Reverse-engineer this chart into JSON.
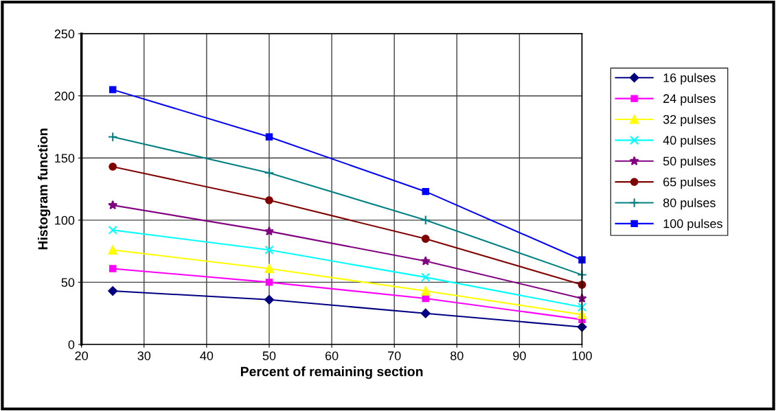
{
  "chart_data": {
    "type": "line",
    "xlabel": "Percent of remaining section",
    "ylabel": "Histogram function",
    "x": [
      25,
      50,
      75,
      100
    ],
    "xlim": [
      20,
      100
    ],
    "xticks": [
      20,
      30,
      40,
      50,
      60,
      70,
      80,
      90,
      100
    ],
    "ylim": [
      0,
      250
    ],
    "yticks": [
      0,
      50,
      100,
      150,
      200,
      250
    ],
    "grid": true,
    "legend": "right",
    "line_style": "solid",
    "series": [
      {
        "name": "16 pulses",
        "color": "#000080",
        "marker": "diamond",
        "values": [
          43,
          36,
          25,
          14
        ]
      },
      {
        "name": "24 pulses",
        "color": "#ff00ff",
        "marker": "square",
        "values": [
          61,
          50,
          37,
          20
        ]
      },
      {
        "name": "32 pulses",
        "color": "#ffff00",
        "marker": "triangle",
        "values": [
          76,
          61,
          43,
          24
        ]
      },
      {
        "name": "40 pulses",
        "color": "#00ffff",
        "marker": "cross",
        "values": [
          92,
          76,
          54,
          30
        ]
      },
      {
        "name": "50 pulses",
        "color": "#800080",
        "marker": "star",
        "values": [
          112,
          91,
          67,
          37
        ]
      },
      {
        "name": "65 pulses",
        "color": "#800000",
        "marker": "circle",
        "values": [
          143,
          116,
          85,
          48
        ]
      },
      {
        "name": "80 pulses",
        "color": "#008080",
        "marker": "plus",
        "values": [
          167,
          138,
          100,
          56
        ]
      },
      {
        "name": "100 pulses",
        "color": "#0000ff",
        "marker": "square",
        "values": [
          205,
          167,
          123,
          68
        ]
      }
    ]
  }
}
